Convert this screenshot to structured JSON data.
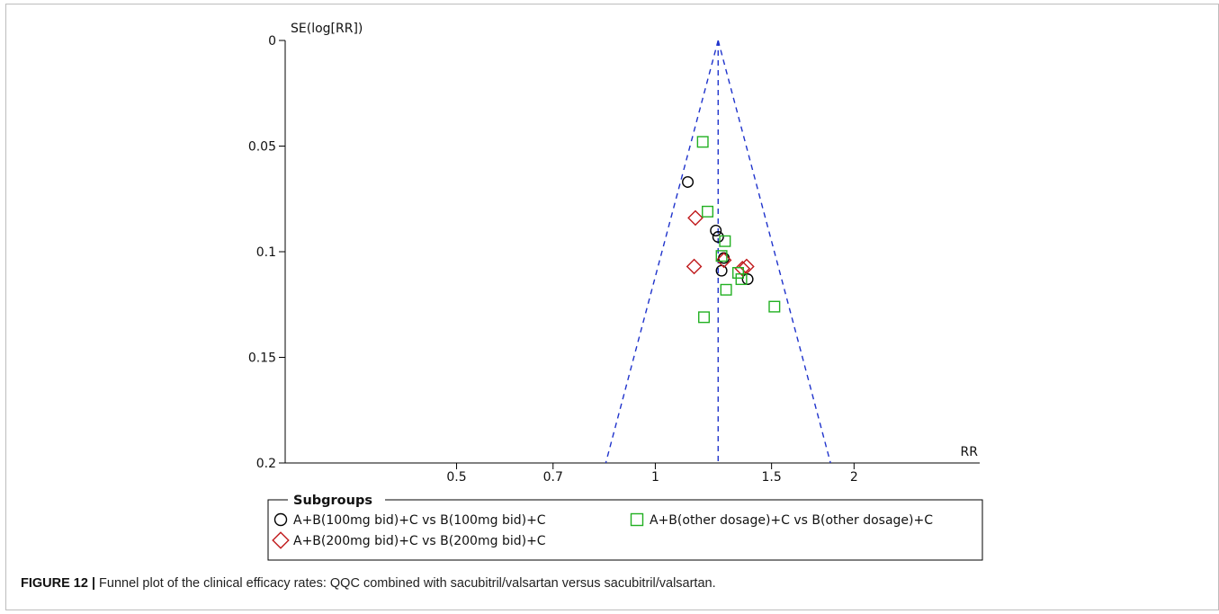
{
  "chart_data": {
    "type": "scatter",
    "subtype": "funnel-plot",
    "x_scale": "log",
    "xlabel": "RR",
    "ylabel": "SE(log[RR])",
    "y_inverted": true,
    "xlim": [
      0.275,
      3.1
    ],
    "ylim": [
      0,
      0.2
    ],
    "x_ticks": [
      {
        "value": 0.5,
        "label": "0.5"
      },
      {
        "value": 0.7,
        "label": "0.7"
      },
      {
        "value": 1,
        "label": "1"
      },
      {
        "value": 1.5,
        "label": "1.5"
      },
      {
        "value": 2,
        "label": "2"
      }
    ],
    "y_ticks": [
      {
        "value": 0,
        "label": "0"
      },
      {
        "value": 0.05,
        "label": "0.05"
      },
      {
        "value": 0.1,
        "label": "0.1"
      },
      {
        "value": 0.15,
        "label": "0.15"
      },
      {
        "value": 0.2,
        "label": "0.2"
      }
    ],
    "pooled_rr": 1.245,
    "funnel_lines": "dashed",
    "funnel_color": "#1f33cc",
    "grid": false,
    "legend": {
      "title": "Subgroups",
      "placement": "bottom"
    },
    "series": [
      {
        "name": "A+B(100mg bid)+C vs B(100mg bid)+C",
        "marker": "circle",
        "color": "#000000",
        "points": [
          {
            "x": 1.12,
            "y": 0.067
          },
          {
            "x": 1.235,
            "y": 0.09
          },
          {
            "x": 1.245,
            "y": 0.093
          },
          {
            "x": 1.27,
            "y": 0.103
          },
          {
            "x": 1.26,
            "y": 0.109
          },
          {
            "x": 1.38,
            "y": 0.113
          }
        ]
      },
      {
        "name": "A+B(200mg bid)+C vs B(200mg bid)+C",
        "marker": "diamond",
        "color": "#c0191b",
        "points": [
          {
            "x": 1.15,
            "y": 0.084
          },
          {
            "x": 1.145,
            "y": 0.107
          },
          {
            "x": 1.27,
            "y": 0.104
          },
          {
            "x": 1.355,
            "y": 0.108
          },
          {
            "x": 1.375,
            "y": 0.107
          }
        ]
      },
      {
        "name": "A+B(other dosage)+C vs B(other dosage)+C",
        "marker": "square",
        "color": "#22b022",
        "points": [
          {
            "x": 1.18,
            "y": 0.048
          },
          {
            "x": 1.2,
            "y": 0.081
          },
          {
            "x": 1.275,
            "y": 0.095
          },
          {
            "x": 1.26,
            "y": 0.102
          },
          {
            "x": 1.335,
            "y": 0.11
          },
          {
            "x": 1.35,
            "y": 0.113
          },
          {
            "x": 1.28,
            "y": 0.118
          },
          {
            "x": 1.515,
            "y": 0.126
          },
          {
            "x": 1.185,
            "y": 0.131
          }
        ]
      }
    ]
  },
  "caption": {
    "label": "FIGURE 12 |",
    "text": " Funnel plot of the clinical efficacy rates: QQC combined with sacubitril/valsartan versus sacubitril/valsartan."
  }
}
